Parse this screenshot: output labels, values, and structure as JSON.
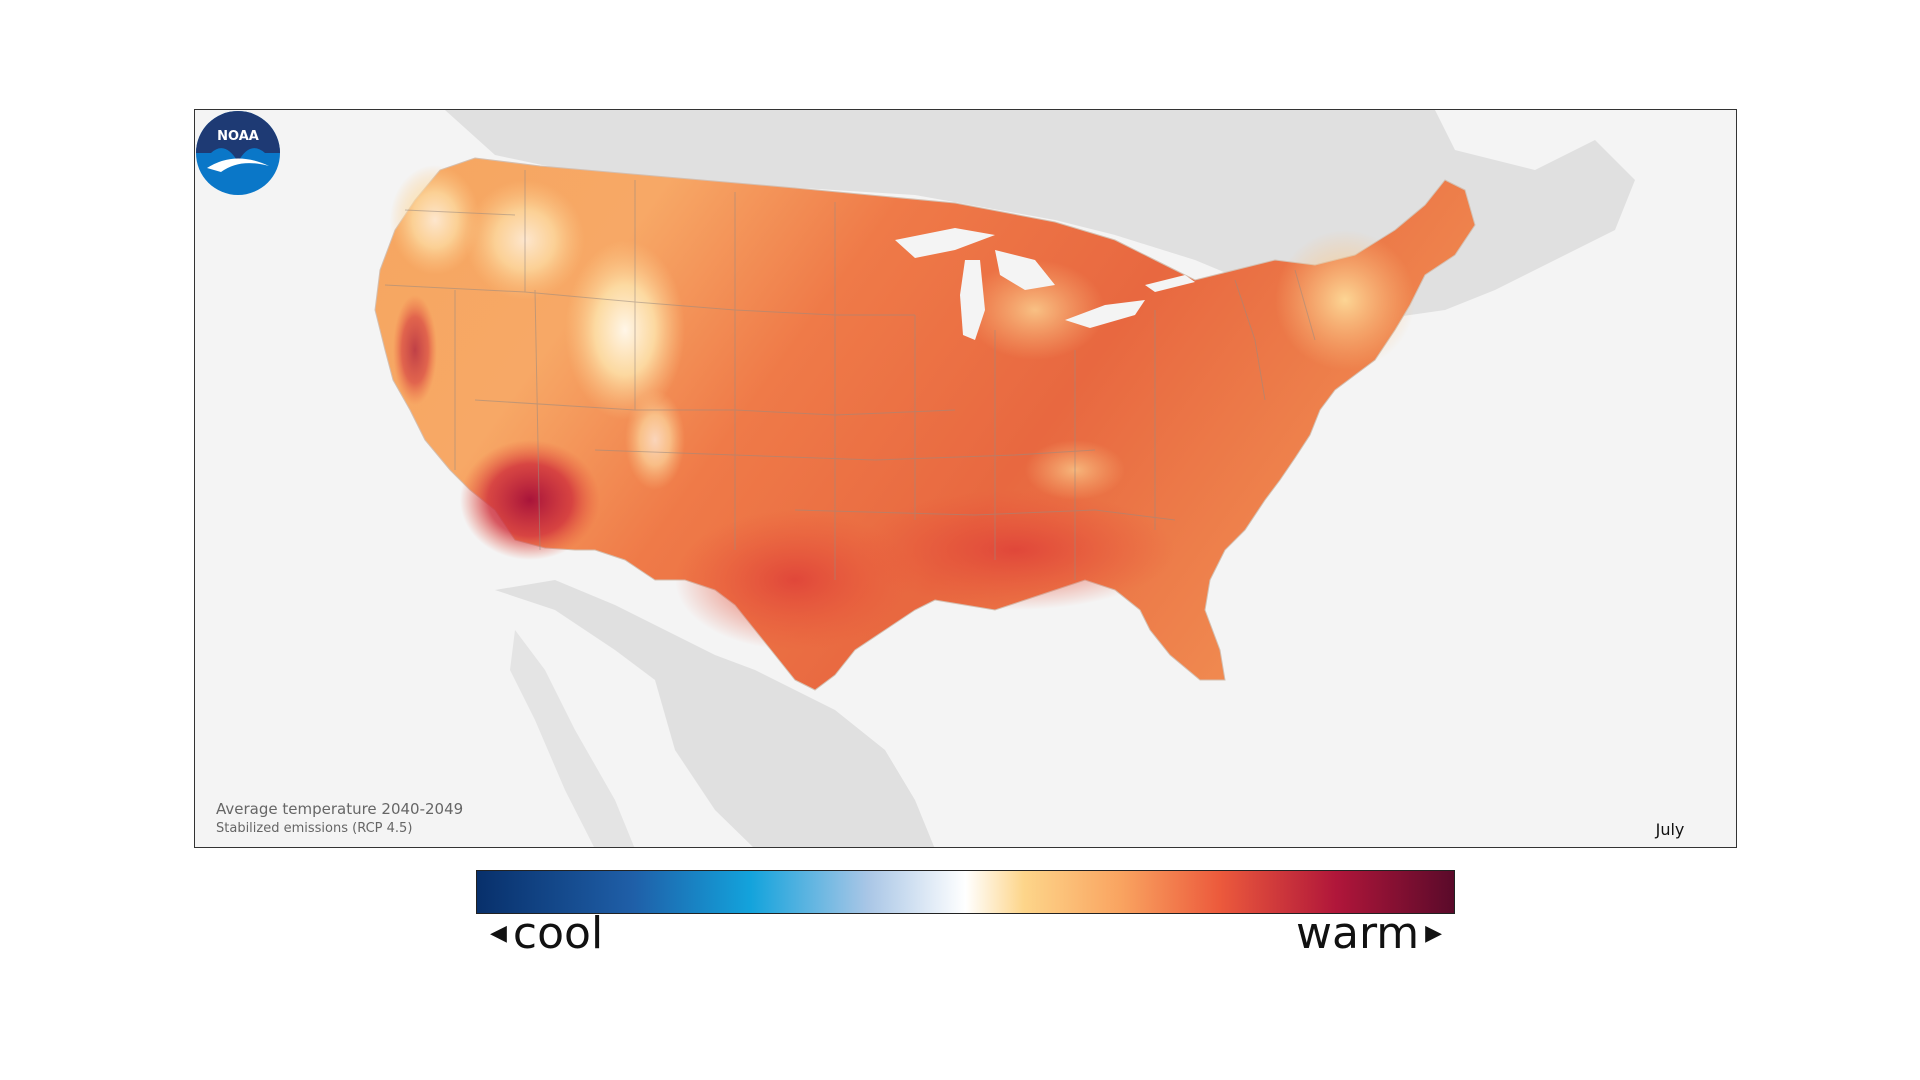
{
  "map": {
    "caption_title": "Average temperature 2040-2049",
    "caption_subtitle": "Stabilized emissions (RCP 4.5)",
    "month": "July",
    "logo_text": "NOAA",
    "colors": {
      "ocean": "#f4f4f4",
      "land_outside": "#e0e0e0",
      "coolest_shown": "#fbe3b0",
      "mid": "#f7a05e",
      "warm": "#e8563a",
      "hottest": "#a8143a",
      "state_lines": "#9a8a80"
    }
  },
  "legend": {
    "cool_label": "cool",
    "warm_label": "warm",
    "left_arrow": "◀",
    "right_arrow": "▶",
    "gradient_stops": [
      "#08306b",
      "#1f5fa8",
      "#13a3dc",
      "#a9c6e6",
      "#ffffff",
      "#fdd58a",
      "#f9a360",
      "#ec5a3c",
      "#b0163a",
      "#5a0a2a"
    ]
  }
}
